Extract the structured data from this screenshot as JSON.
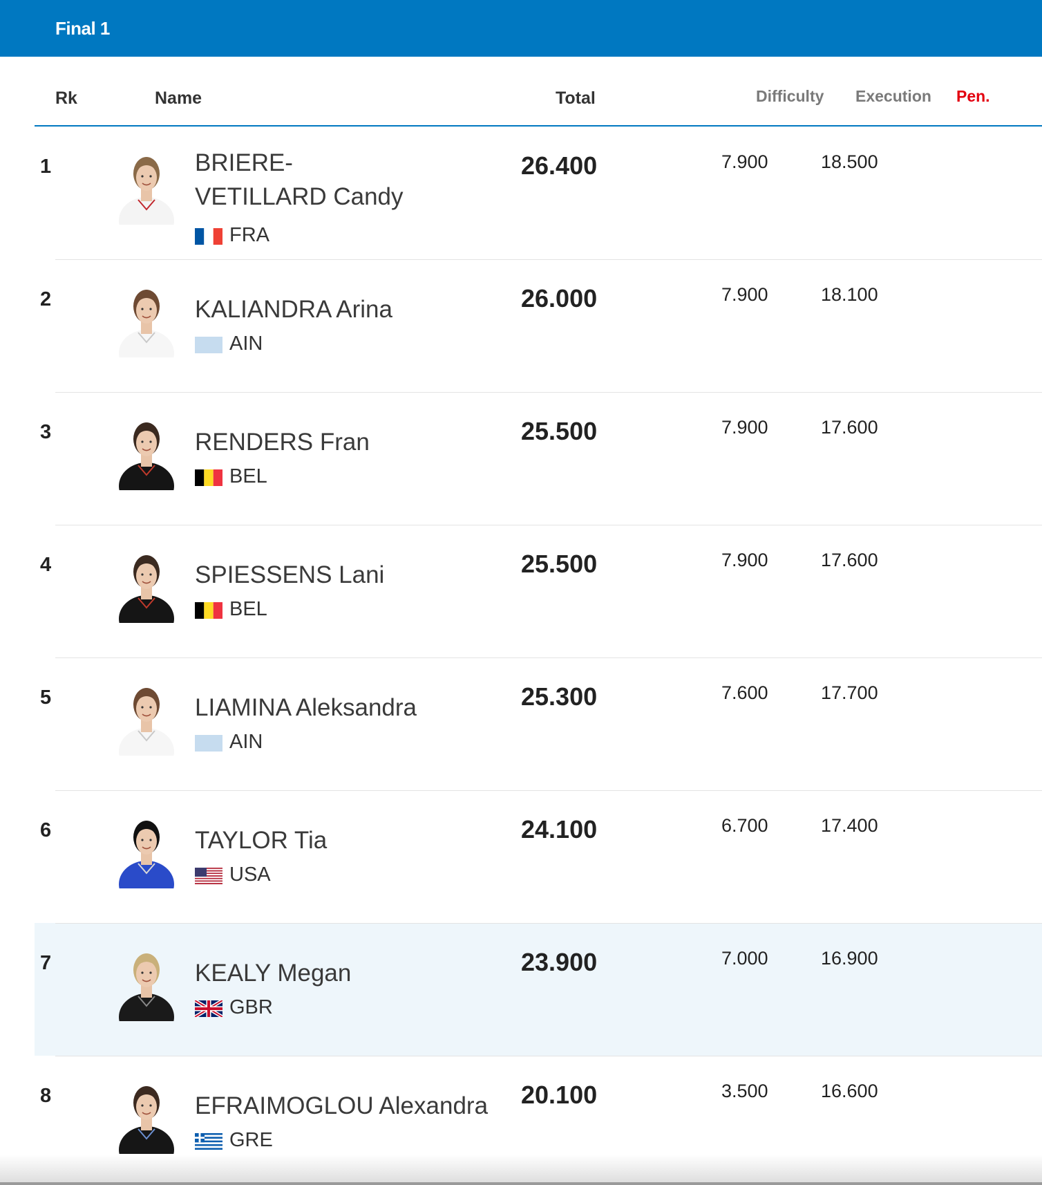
{
  "header": {
    "title": "Final 1"
  },
  "columns": {
    "rank": "Rk",
    "name": "Name",
    "total": "Total",
    "difficulty": "Difficulty",
    "execution": "Execution",
    "penalty": "Pen."
  },
  "colors": {
    "accent": "#0078c1",
    "penalty": "#e3000f",
    "highlight_row": "#eef6fb"
  },
  "rows": [
    {
      "rank": "1",
      "name_line1": "BRIERE-",
      "name_line2": "VETILLARD Candy",
      "noc": "FRA",
      "flag": "flag-fra",
      "total": "26.400",
      "difficulty": "7.900",
      "execution": "18.500",
      "penalty": ""
    },
    {
      "rank": "2",
      "name_line1": "KALIANDRA Arina",
      "name_line2": "",
      "noc": "AIN",
      "flag": "flag-ain",
      "total": "26.000",
      "difficulty": "7.900",
      "execution": "18.100",
      "penalty": ""
    },
    {
      "rank": "3",
      "name_line1": "RENDERS Fran",
      "name_line2": "",
      "noc": "BEL",
      "flag": "flag-bel",
      "total": "25.500",
      "difficulty": "7.900",
      "execution": "17.600",
      "penalty": ""
    },
    {
      "rank": "4",
      "name_line1": "SPIESSENS Lani",
      "name_line2": "",
      "noc": "BEL",
      "flag": "flag-bel",
      "total": "25.500",
      "difficulty": "7.900",
      "execution": "17.600",
      "penalty": ""
    },
    {
      "rank": "5",
      "name_line1": "LIAMINA Aleksandra",
      "name_line2": "",
      "noc": "AIN",
      "flag": "flag-ain",
      "total": "25.300",
      "difficulty": "7.600",
      "execution": "17.700",
      "penalty": ""
    },
    {
      "rank": "6",
      "name_line1": "TAYLOR Tia",
      "name_line2": "",
      "noc": "USA",
      "flag": "flag-usa",
      "total": "24.100",
      "difficulty": "6.700",
      "execution": "17.400",
      "penalty": ""
    },
    {
      "rank": "7",
      "name_line1": "KEALY Megan",
      "name_line2": "",
      "noc": "GBR",
      "flag": "flag-gbr",
      "total": "23.900",
      "difficulty": "7.000",
      "execution": "16.900",
      "penalty": ""
    },
    {
      "rank": "8",
      "name_line1": "EFRAIMOGLOU Alexandra",
      "name_line2": "",
      "noc": "GRE",
      "flag": "flag-gre",
      "total": "20.100",
      "difficulty": "3.500",
      "execution": "16.600",
      "penalty": ""
    }
  ]
}
